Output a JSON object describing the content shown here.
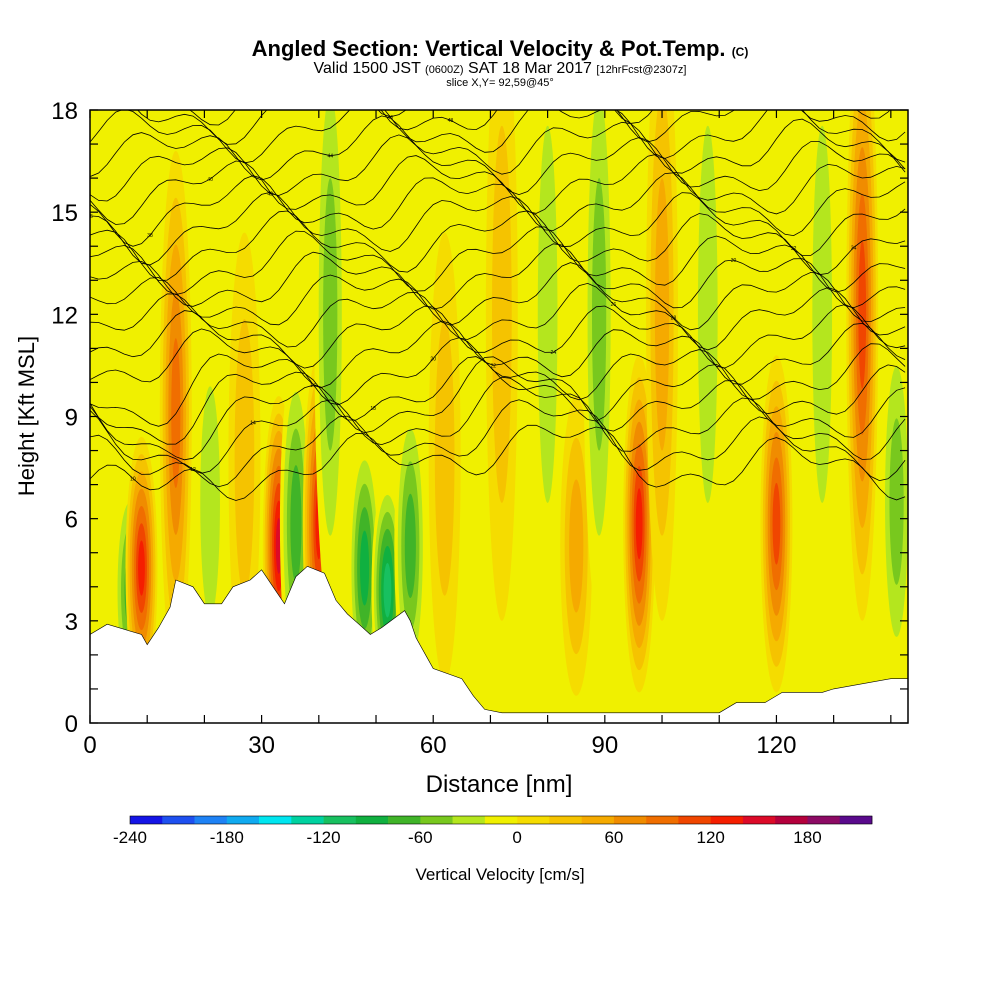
{
  "header": {
    "title_main": "Angled Section: Vertical Velocity & Pot.Temp.",
    "title_tag": "(C)",
    "valid_prefix": "Valid 1500 JST",
    "valid_zone": "(0600Z)",
    "valid_date": "SAT 18 Mar 2017",
    "valid_fcst": "[12hrFcst@2307z]",
    "slice": "slice X,Y= 92,59@45°"
  },
  "chart_data": {
    "type": "heatmap",
    "xlabel": "Distance [nm]",
    "ylabel": "Height [Kft MSL]",
    "xlim": [
      0,
      143
    ],
    "ylim": [
      0,
      18
    ],
    "x_ticks": [
      0,
      30,
      60,
      90,
      120
    ],
    "y_ticks": [
      0,
      3,
      6,
      9,
      12,
      15,
      18
    ],
    "colorbar": {
      "label": "Vertical Velocity [cm/s]",
      "min": -240,
      "max": 220,
      "step": 20,
      "tick_values": [
        -240,
        -180,
        -120,
        -60,
        0,
        60,
        120,
        180
      ],
      "colors": [
        "#1414e6",
        "#1e50f0",
        "#1e82f5",
        "#10aaf0",
        "#00e6f0",
        "#00d2a0",
        "#18c060",
        "#10b040",
        "#40b428",
        "#78c81e",
        "#b4e61e",
        "#f0f000",
        "#f5dc00",
        "#f5c300",
        "#f5aa00",
        "#f08c00",
        "#f06e00",
        "#f04600",
        "#f51e00",
        "#dc0a28",
        "#b4003c",
        "#8c0a64",
        "#5a0a8c"
      ]
    },
    "columns_vv": [
      {
        "x": 3,
        "h": 8,
        "v": -10
      },
      {
        "x": 7,
        "h": 6,
        "v": -70
      },
      {
        "x": 9,
        "h": 7,
        "v": 130
      },
      {
        "x": 15,
        "h": 14,
        "v": 90
      },
      {
        "x": 21,
        "h": 10,
        "v": -40
      },
      {
        "x": 27,
        "h": 12,
        "v": 40
      },
      {
        "x": 33,
        "h": 8,
        "v": 150
      },
      {
        "x": 36,
        "h": 9,
        "v": -80
      },
      {
        "x": 40,
        "h": 9,
        "v": 140
      },
      {
        "x": 42,
        "h": 18,
        "v": -60
      },
      {
        "x": 48,
        "h": 7,
        "v": -90
      },
      {
        "x": 52,
        "h": 6,
        "v": -120
      },
      {
        "x": 56,
        "h": 8,
        "v": -80
      },
      {
        "x": 62,
        "h": 12,
        "v": 40
      },
      {
        "x": 72,
        "h": 18,
        "v": 30
      },
      {
        "x": 80,
        "h": 18,
        "v": -40
      },
      {
        "x": 85,
        "h": 8,
        "v": 60
      },
      {
        "x": 89,
        "h": 18,
        "v": -50
      },
      {
        "x": 96,
        "h": 9,
        "v": 140
      },
      {
        "x": 100,
        "h": 18,
        "v": 50
      },
      {
        "x": 108,
        "h": 18,
        "v": -30
      },
      {
        "x": 120,
        "h": 9,
        "v": 120
      },
      {
        "x": 128,
        "h": 18,
        "v": -40
      },
      {
        "x": 135,
        "h": 18,
        "v": 110
      },
      {
        "x": 141,
        "h": 10,
        "v": -50
      }
    ],
    "terrain": [
      [
        0,
        2.6
      ],
      [
        3,
        2.9
      ],
      [
        9,
        2.6
      ],
      [
        10,
        2.3
      ],
      [
        12,
        2.8
      ],
      [
        14,
        3.4
      ],
      [
        15,
        4.2
      ],
      [
        18,
        4.0
      ],
      [
        20,
        3.5
      ],
      [
        23,
        3.5
      ],
      [
        25,
        4.0
      ],
      [
        28,
        4.2
      ],
      [
        30,
        4.5
      ],
      [
        32,
        4.0
      ],
      [
        34,
        3.5
      ],
      [
        36,
        4.3
      ],
      [
        38,
        4.6
      ],
      [
        41,
        4.4
      ],
      [
        43,
        3.6
      ],
      [
        45,
        3.2
      ],
      [
        47,
        2.9
      ],
      [
        49,
        2.6
      ],
      [
        51,
        2.8
      ],
      [
        55,
        3.3
      ],
      [
        56,
        3.0
      ],
      [
        57,
        2.5
      ],
      [
        59,
        1.9
      ],
      [
        60,
        1.6
      ],
      [
        65,
        1.3
      ],
      [
        67,
        0.8
      ],
      [
        69,
        0.4
      ],
      [
        72,
        0.3
      ],
      [
        90,
        0.3
      ],
      [
        110,
        0.3
      ],
      [
        113,
        0.6
      ],
      [
        118,
        0.6
      ],
      [
        121,
        0.9
      ],
      [
        128,
        0.9
      ],
      [
        130,
        1.0
      ],
      [
        140,
        1.3
      ],
      [
        143,
        1.3
      ]
    ],
    "theta_labels": [
      "10",
      "12",
      "14",
      "16",
      "18",
      "20",
      "22",
      "24",
      "26",
      "28",
      "30",
      "32",
      "34",
      "36",
      "38",
      "40",
      "42",
      "44",
      "46",
      "48",
      "50"
    ]
  },
  "colors": {
    "frame": "#000000",
    "terrain": "#ffffff",
    "contour": "#000000"
  }
}
